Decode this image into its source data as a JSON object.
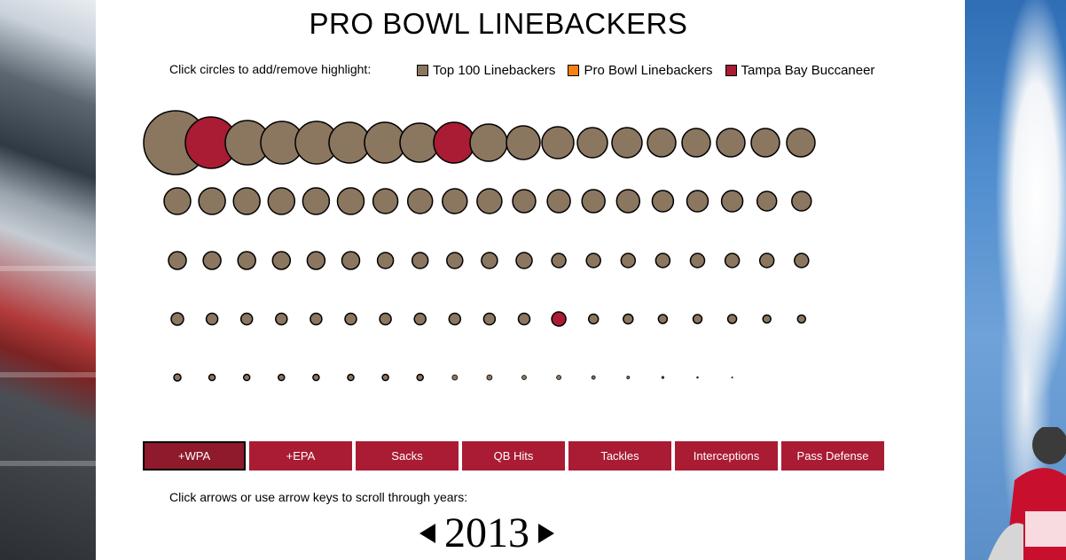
{
  "title": "PRO BOWL LINEBACKERS",
  "highlight_hint": "Click circles to add/remove highlight:",
  "legend": [
    {
      "label": "Top 100 Linebackers",
      "color": "#8b7660"
    },
    {
      "label": "Pro Bowl Linebackers",
      "color": "#f5810f"
    },
    {
      "label": "Tampa Bay Buccaneer",
      "color": "#a91c33"
    }
  ],
  "colors": {
    "default": "#8b7660",
    "pro_bowl": "#f5810f",
    "buccaneer": "#a91c33"
  },
  "rows": [
    {
      "values": [
        36,
        29,
        25,
        24,
        24,
        23,
        23,
        22,
        23,
        21,
        19,
        18,
        17,
        17,
        16,
        16,
        16,
        16,
        16
      ],
      "highlight": [
        1,
        8
      ]
    },
    {
      "values": [
        15,
        15,
        15,
        15,
        15,
        15,
        14,
        14,
        14,
        14,
        13,
        13,
        13,
        13,
        12,
        12,
        12,
        11,
        11
      ],
      "highlight": []
    },
    {
      "values": [
        10,
        10,
        10,
        10,
        10,
        10,
        9,
        9,
        9,
        9,
        9,
        8,
        8,
        8,
        8,
        8,
        8,
        8,
        8
      ],
      "highlight": []
    },
    {
      "values": [
        7,
        6.5,
        6.5,
        6.5,
        6.5,
        6.5,
        6.5,
        6.5,
        6.5,
        6.5,
        6.5,
        8,
        5.5,
        5.5,
        5,
        5,
        5,
        4.5,
        4.5
      ],
      "highlight": [
        11
      ]
    },
    {
      "values": [
        4,
        3.5,
        3.5,
        3.5,
        3.5,
        3.5,
        3.5,
        3.5,
        3,
        3,
        2.5,
        2.5,
        2,
        1.5,
        1.2,
        0.8,
        0.6
      ],
      "highlight": []
    }
  ],
  "tabs": [
    {
      "label": "+WPA",
      "active": true
    },
    {
      "label": "+EPA",
      "active": false
    },
    {
      "label": "Sacks",
      "active": false
    },
    {
      "label": "QB Hits",
      "active": false
    },
    {
      "label": "Tackles",
      "active": false
    },
    {
      "label": "Interceptions",
      "active": false
    },
    {
      "label": "Pass Defense",
      "active": false
    }
  ],
  "year_hint": "Click arrows or use arrow keys to scroll through years:",
  "year": "2013"
}
